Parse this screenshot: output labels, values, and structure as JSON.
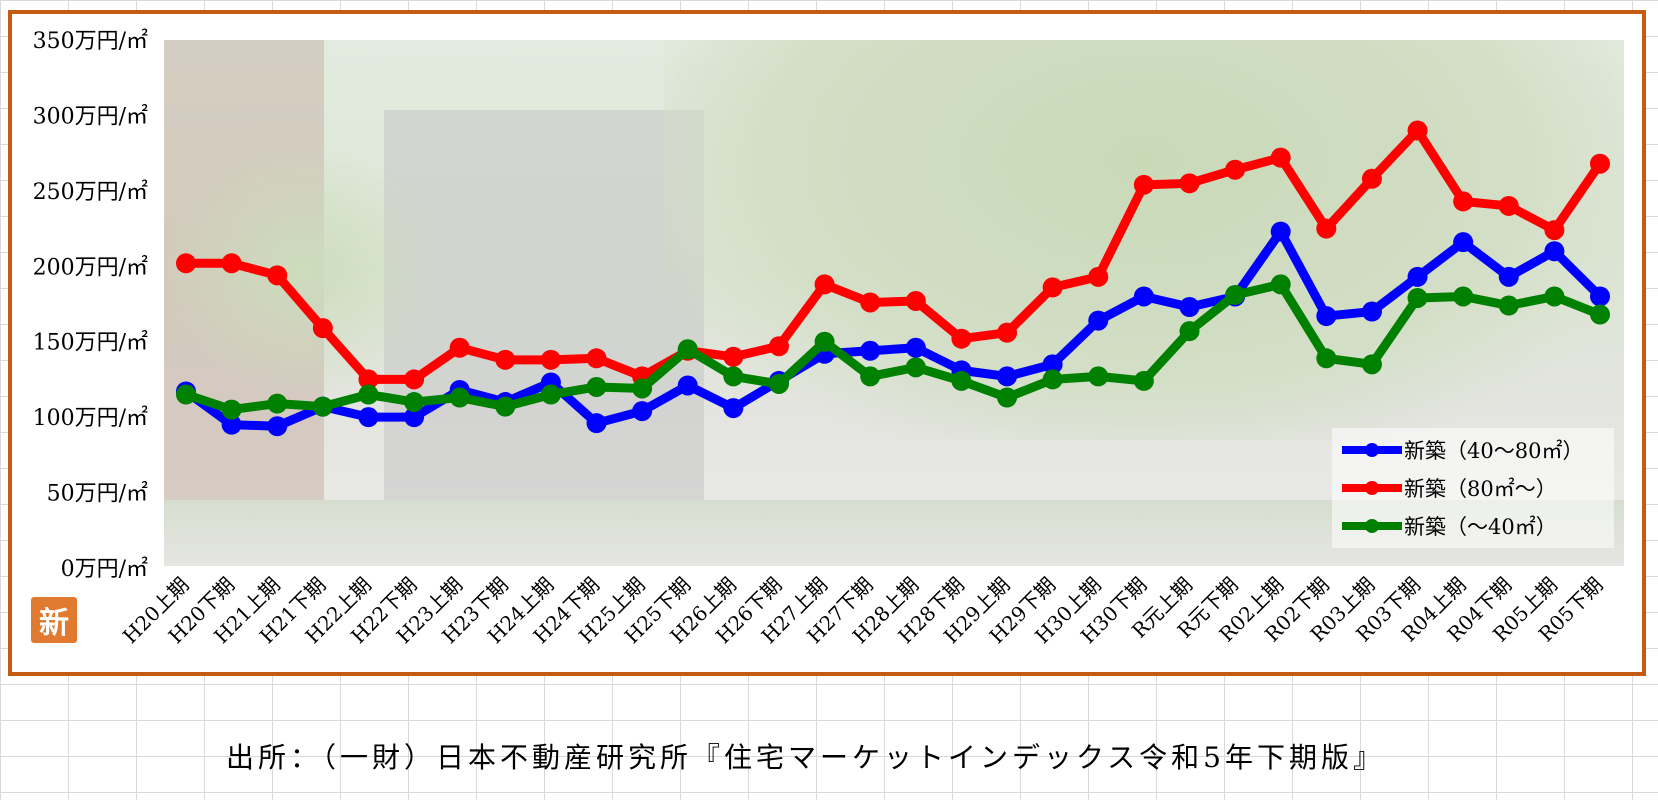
{
  "chart_data": {
    "type": "line",
    "ylim": [
      0,
      350
    ],
    "y_ticks": [
      "0万円/㎡",
      "50万円/㎡",
      "100万円/㎡",
      "150万円/㎡",
      "200万円/㎡",
      "250万円/㎡",
      "300万円/㎡",
      "350万円/㎡"
    ],
    "y_tick_values": [
      0,
      50,
      100,
      150,
      200,
      250,
      300,
      350
    ],
    "categories": [
      "H20上期",
      "H20下期",
      "H21上期",
      "H21下期",
      "H22上期",
      "H22下期",
      "H23上期",
      "H23下期",
      "H24上期",
      "H24下期",
      "H25上期",
      "H25下期",
      "H26上期",
      "H26下期",
      "H27上期",
      "H27下期",
      "H28上期",
      "H28下期",
      "H29上期",
      "H29下期",
      "H30上期",
      "H30下期",
      "R元上期",
      "R元下期",
      "R02上期",
      "R02下期",
      "R03上期",
      "R03下期",
      "R04上期",
      "R04下期",
      "R05上期",
      "R05下期"
    ],
    "series": [
      {
        "name": "新築（40～80㎡）",
        "color": "#0000ff",
        "values": [
          117,
          95,
          94,
          107,
          100,
          100,
          118,
          110,
          123,
          96,
          104,
          121,
          106,
          124,
          142,
          144,
          146,
          131,
          127,
          135,
          164,
          180,
          173,
          180,
          223,
          167,
          170,
          193,
          216,
          193,
          210,
          180
        ]
      },
      {
        "name": "新築（80㎡～）",
        "color": "#ff0000",
        "values": [
          202,
          202,
          194,
          159,
          125,
          125,
          146,
          138,
          138,
          139,
          127,
          144,
          140,
          147,
          188,
          176,
          177,
          152,
          156,
          186,
          193,
          254,
          255,
          264,
          272,
          225,
          258,
          290,
          243,
          240,
          224,
          268
        ]
      },
      {
        "name": "新築（～40㎡）",
        "color": "#008000",
        "values": [
          115,
          105,
          109,
          107,
          115,
          110,
          113,
          107,
          115,
          120,
          119,
          145,
          127,
          122,
          150,
          127,
          133,
          124,
          113,
          125,
          127,
          124,
          157,
          181,
          188,
          139,
          135,
          179,
          180,
          174,
          180,
          168
        ]
      }
    ],
    "legend_position": "bottom-right",
    "grid": false
  },
  "source": "出所：（一財）日本不動産研究所『住宅マーケットインデックス令和5年下期版』",
  "logo_text": "新"
}
